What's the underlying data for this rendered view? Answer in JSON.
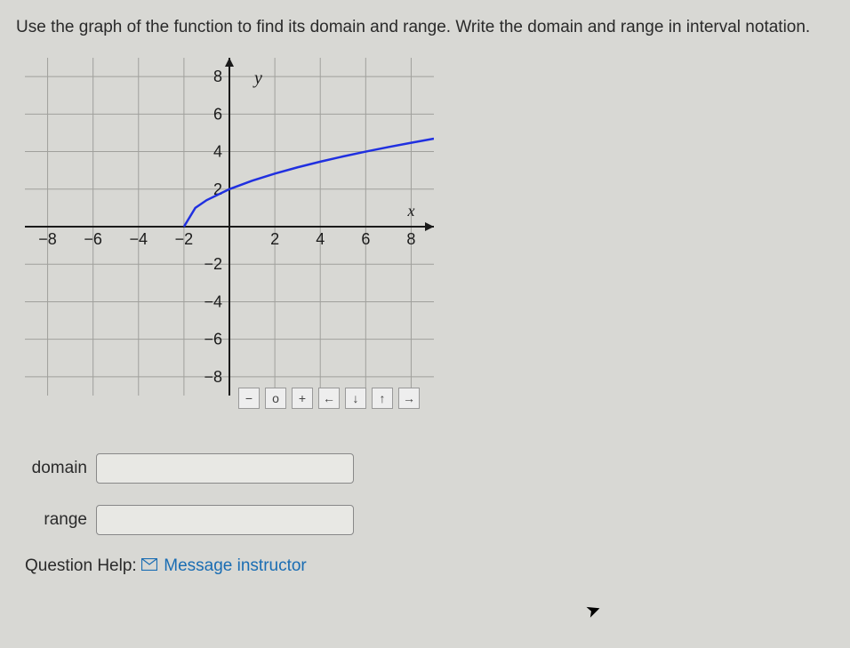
{
  "instruction": "Use the graph of the function to find its domain and range. Write the domain and range in interval notation.",
  "graph": {
    "type": "line",
    "xlim": [
      -9,
      9
    ],
    "ylim": [
      -9,
      9
    ],
    "xtick_step": 2,
    "ytick_step": 2,
    "xticks": [
      -8,
      -6,
      -4,
      -2,
      2,
      4,
      6,
      8
    ],
    "yticks": [
      -8,
      -6,
      -4,
      -2,
      2,
      4,
      6,
      8
    ],
    "x_axis_label": "x",
    "y_axis_label": "y",
    "background_color": "#d8d8d4",
    "grid_color": "#a0a09c",
    "axis_color": "#1a1a1a",
    "tick_label_color": "#1a1a1a",
    "tick_fontsize": 18,
    "curve": {
      "color": "#2030e0",
      "width": 2.5,
      "start_x": -2,
      "points": [
        [
          -2,
          0
        ],
        [
          -1.5,
          1.0
        ],
        [
          -1,
          1.414
        ],
        [
          0,
          2.0
        ],
        [
          1,
          2.449
        ],
        [
          2,
          2.828
        ],
        [
          3,
          3.162
        ],
        [
          4,
          3.464
        ],
        [
          5,
          3.742
        ],
        [
          6,
          4.0
        ],
        [
          7,
          4.243
        ],
        [
          8,
          4.47
        ],
        [
          9,
          4.69
        ]
      ]
    },
    "toolbar_icons": [
      "−",
      "o",
      "+",
      "←",
      "↓",
      "↑",
      "→"
    ]
  },
  "inputs": {
    "domain_label": "domain",
    "domain_value": "",
    "range_label": "range",
    "range_value": ""
  },
  "help": {
    "prefix": "Question Help:",
    "link_text": "Message instructor"
  }
}
